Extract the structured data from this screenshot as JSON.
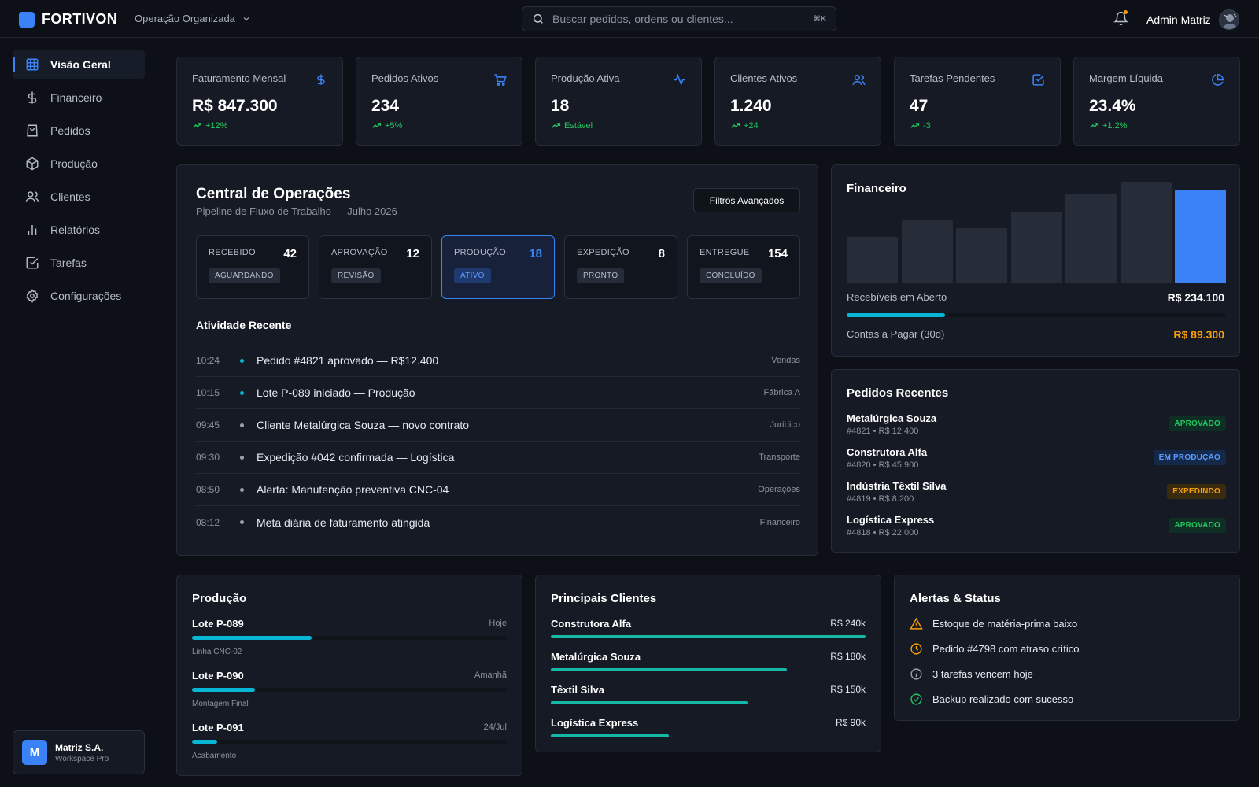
{
  "brand": {
    "name": "FORTIVON",
    "org_selector": "Operação Organizada"
  },
  "search": {
    "placeholder": "Buscar pedidos, ordens ou clientes...",
    "shortcut": "⌘K"
  },
  "user": {
    "name": "Admin Matriz"
  },
  "sidebar": {
    "items": [
      {
        "label": "Visão Geral",
        "icon": "grid-icon",
        "active": true
      },
      {
        "label": "Financeiro",
        "icon": "dollar-icon"
      },
      {
        "label": "Pedidos",
        "icon": "shopping-bag-icon"
      },
      {
        "label": "Produção",
        "icon": "package-icon"
      },
      {
        "label": "Clientes",
        "icon": "users-icon"
      },
      {
        "label": "Relatórios",
        "icon": "bar-chart-icon"
      },
      {
        "label": "Tarefas",
        "icon": "check-square-icon"
      },
      {
        "label": "Configurações",
        "icon": "gear-icon"
      }
    ],
    "workspace": {
      "initial": "M",
      "name": "Matriz S.A.",
      "plan": "Workspace Pro"
    }
  },
  "kpis": [
    {
      "label": "Faturamento Mensal",
      "value": "R$ 847.300",
      "trend": "+12%",
      "icon": "dollar-icon"
    },
    {
      "label": "Pedidos Ativos",
      "value": "234",
      "trend": "+5%",
      "icon": "cart-icon"
    },
    {
      "label": "Produção Ativa",
      "value": "18",
      "trend": "Estável",
      "icon": "activity-icon"
    },
    {
      "label": "Clientes Ativos",
      "value": "1.240",
      "trend": "+24",
      "icon": "users-icon"
    },
    {
      "label": "Tarefas Pendentes",
      "value": "47",
      "trend": "-3",
      "icon": "check-square-icon"
    },
    {
      "label": "Margem Líquida",
      "value": "23.4%",
      "trend": "+1.2%",
      "icon": "pie-chart-icon"
    }
  ],
  "ops": {
    "title": "Central de Operações",
    "subtitle": "Pipeline de Fluxo de Trabalho — Julho 2026",
    "filter_button": "Filtros Avançados",
    "stages": [
      {
        "name": "RECEBIDO",
        "count": "42",
        "badge": "AGUARDANDO"
      },
      {
        "name": "APROVAÇÃO",
        "count": "12",
        "badge": "REVISÃO"
      },
      {
        "name": "PRODUÇÃO",
        "count": "18",
        "badge": "ATIVO",
        "active": true
      },
      {
        "name": "EXPEDIÇÃO",
        "count": "8",
        "badge": "PRONTO"
      },
      {
        "name": "ENTREGUE",
        "count": "154",
        "badge": "CONCLUÍDO"
      }
    ],
    "activity_title": "Atividade Recente",
    "activity": [
      {
        "time": "10:24",
        "text": "Pedido #4821 aprovado — R$12.400",
        "tag": "Vendas",
        "dot": "#06b6d4"
      },
      {
        "time": "10:15",
        "text": "Lote P-089 iniciado — Produção",
        "tag": "Fábrica A",
        "dot": "#06b6d4"
      },
      {
        "time": "09:45",
        "text": "Cliente Metalúrgica Souza — novo contrato",
        "tag": "Jurídico",
        "dot": "#9aa3b2"
      },
      {
        "time": "09:30",
        "text": "Expedição #042 confirmada — Logística",
        "tag": "Transporte",
        "dot": "#9aa3b2"
      },
      {
        "time": "08:50",
        "text": "Alerta: Manutenção preventiva CNC-04",
        "tag": "Operações",
        "dot": "#9aa3b2"
      },
      {
        "time": "08:12",
        "text": "Meta diária de faturamento atingida",
        "tag": "Financeiro",
        "dot": "#9aa3b2"
      }
    ]
  },
  "financeiro": {
    "title": "Financeiro",
    "chart_data": {
      "type": "bar",
      "values": [
        41,
        56,
        49,
        64,
        80,
        91,
        84
      ],
      "highlight_index": 6
    },
    "rows": [
      {
        "label": "Recebíveis em Aberto",
        "value": "R$ 234.100",
        "progress": 0.26
      },
      {
        "label": "Contas a Pagar (30d)",
        "value": "R$ 89.300"
      }
    ]
  },
  "orders": {
    "title": "Pedidos Recentes",
    "items": [
      {
        "name": "Metalúrgica Souza",
        "meta": "#4821 • R$ 12.400",
        "status": "APROVADO",
        "color": "green"
      },
      {
        "name": "Construtora Alfa",
        "meta": "#4820 • R$ 45.900",
        "status": "EM PRODUÇÃO",
        "color": "blue"
      },
      {
        "name": "Indústria Têxtil Silva",
        "meta": "#4819 • R$ 8.200",
        "status": "EXPEDINDO",
        "color": "amber"
      },
      {
        "name": "Logística Express",
        "meta": "#4818 • R$ 22.000",
        "status": "APROVADO",
        "color": "green"
      }
    ]
  },
  "production": {
    "title": "Produção",
    "items": [
      {
        "name": "Lote P-089",
        "when": "Hoje",
        "line": "Linha CNC-02",
        "progress": 0.38
      },
      {
        "name": "Lote P-090",
        "when": "Amanhã",
        "line": "Montagem Final",
        "progress": 0.2
      },
      {
        "name": "Lote P-091",
        "when": "24/Jul",
        "line": "Acabamento",
        "progress": 0.08
      }
    ]
  },
  "clients": {
    "title": "Principais Clientes",
    "items": [
      {
        "name": "Construtora Alfa",
        "value": "R$ 240k",
        "amount": 240
      },
      {
        "name": "Metalúrgica Souza",
        "value": "R$ 180k",
        "amount": 180
      },
      {
        "name": "Têxtil Silva",
        "value": "R$ 150k",
        "amount": 150
      },
      {
        "name": "Logística Express",
        "value": "R$ 90k",
        "amount": 90
      }
    ]
  },
  "alerts": {
    "title": "Alertas & Status",
    "items": [
      {
        "text": "Estoque de matéria-prima baixo",
        "icon": "warning-icon",
        "color": "#f59e0b"
      },
      {
        "text": "Pedido #4798 com atraso crítico",
        "icon": "clock-icon",
        "color": "#f59e0b"
      },
      {
        "text": "3 tarefas vencem hoje",
        "icon": "info-icon",
        "color": "#9aa3b2"
      },
      {
        "text": "Backup realizado com sucesso",
        "icon": "check-circle-icon",
        "color": "#22c55e"
      }
    ]
  }
}
